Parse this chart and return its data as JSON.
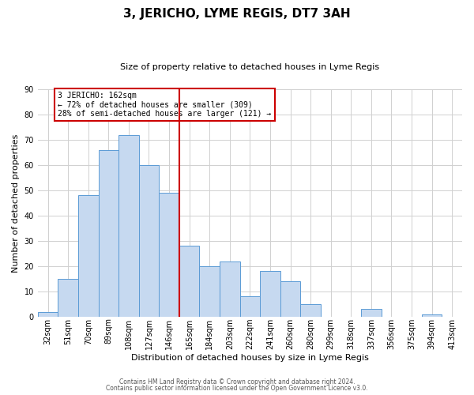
{
  "title": "3, JERICHO, LYME REGIS, DT7 3AH",
  "subtitle": "Size of property relative to detached houses in Lyme Regis",
  "xlabel": "Distribution of detached houses by size in Lyme Regis",
  "ylabel": "Number of detached properties",
  "bar_labels": [
    "32sqm",
    "51sqm",
    "70sqm",
    "89sqm",
    "108sqm",
    "127sqm",
    "146sqm",
    "165sqm",
    "184sqm",
    "203sqm",
    "222sqm",
    "241sqm",
    "260sqm",
    "280sqm",
    "299sqm",
    "318sqm",
    "337sqm",
    "356sqm",
    "375sqm",
    "394sqm",
    "413sqm"
  ],
  "bar_values": [
    2,
    15,
    48,
    66,
    72,
    60,
    49,
    28,
    20,
    22,
    8,
    18,
    14,
    5,
    0,
    0,
    3,
    0,
    0,
    1,
    0
  ],
  "bar_color": "#c6d9f0",
  "bar_edge_color": "#5b9bd5",
  "vline_x_idx": 7,
  "vline_color": "#cc0000",
  "annotation_box_text": "3 JERICHO: 162sqm\n← 72% of detached houses are smaller (309)\n28% of semi-detached houses are larger (121) →",
  "annotation_box_color": "#cc0000",
  "annotation_text_color": "#000000",
  "ylim": [
    0,
    90
  ],
  "yticks": [
    0,
    10,
    20,
    30,
    40,
    50,
    60,
    70,
    80,
    90
  ],
  "footer_line1": "Contains HM Land Registry data © Crown copyright and database right 2024.",
  "footer_line2": "Contains public sector information licensed under the Open Government Licence v3.0.",
  "background_color": "#ffffff",
  "grid_color": "#d0d0d0",
  "title_fontsize": 11,
  "subtitle_fontsize": 8,
  "xlabel_fontsize": 8,
  "ylabel_fontsize": 8,
  "tick_fontsize": 7,
  "annotation_fontsize": 7,
  "footer_fontsize": 5.5
}
